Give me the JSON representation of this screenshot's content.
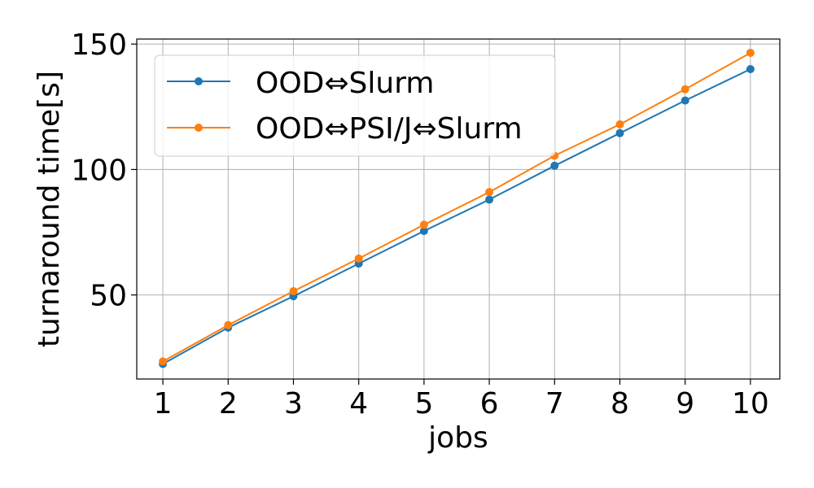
{
  "chart_data": {
    "type": "line",
    "title": "",
    "xlabel": "jobs",
    "ylabel": "turnaround time[s]",
    "x": [
      1,
      2,
      3,
      4,
      5,
      6,
      7,
      8,
      9,
      10
    ],
    "x_ticks": [
      "1",
      "2",
      "3",
      "4",
      "5",
      "6",
      "7",
      "8",
      "9",
      "10"
    ],
    "y_ticks": [
      50,
      100,
      150
    ],
    "y_tick_labels": [
      "50",
      "100",
      "150"
    ],
    "xlim": [
      0.6,
      10.45
    ],
    "ylim": [
      16.5,
      152
    ],
    "grid": true,
    "legend_position": "upper-left",
    "series": [
      {
        "name": "OOD⇔Slurm",
        "color": "#1f77b4",
        "values": [
          22.5,
          37.0,
          49.5,
          62.5,
          75.5,
          88.0,
          101.5,
          114.5,
          127.5,
          140.0
        ]
      },
      {
        "name": "OOD⇔PSI/J⇔Slurm",
        "color": "#ff7f0e",
        "values": [
          23.5,
          38.0,
          51.5,
          64.5,
          78.0,
          91.0,
          105.5,
          118.0,
          132.0,
          146.5
        ]
      }
    ]
  }
}
